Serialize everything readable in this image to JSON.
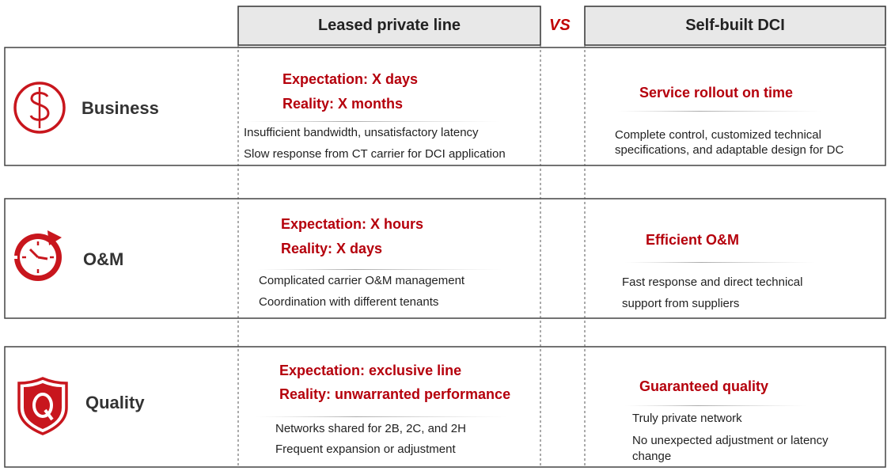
{
  "header": {
    "left": "Leased private line",
    "vs": "VS",
    "right": "Self-built DCI"
  },
  "rows": [
    {
      "label": "Business",
      "left": {
        "expectation": "Expectation: X days",
        "reality": "Reality: X months",
        "points": [
          "Insufficient bandwidth, unsatisfactory latency",
          "Slow response from CT carrier for DCI application"
        ]
      },
      "right": {
        "headline": "Service rollout on time",
        "points": [
          "Complete control, customized technical specifications, and adaptable design for DC"
        ]
      }
    },
    {
      "label": "O&M",
      "left": {
        "expectation": "Expectation: X hours",
        "reality": "Reality: X days",
        "points": [
          "Complicated carrier O&M management",
          "Coordination with different tenants"
        ]
      },
      "right": {
        "headline": "Efficient O&M",
        "points": [
          "Fast response and direct technical support from suppliers"
        ]
      }
    },
    {
      "label": "Quality",
      "left": {
        "expectation": "Expectation: exclusive line",
        "reality": "Reality: unwarranted performance",
        "points": [
          "Networks shared for 2B, 2C, and 2H",
          "Frequent expansion or adjustment"
        ]
      },
      "right": {
        "headline": "Guaranteed quality",
        "points": [
          "Truly private network",
          "No unexpected adjustment or latency change"
        ]
      }
    }
  ]
}
